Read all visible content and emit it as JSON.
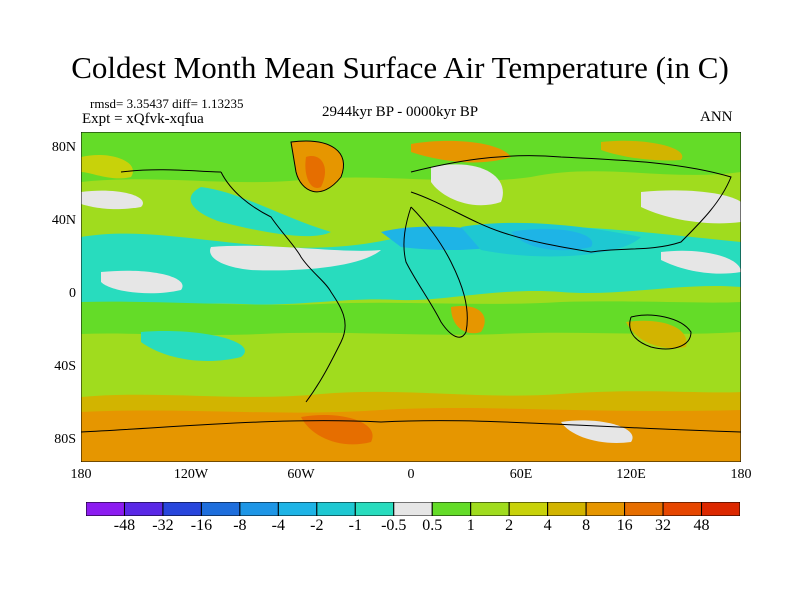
{
  "title": "Coldest Month Mean Surface Air Temperature (in C)",
  "stats": "rmsd= 3.35437 diff= 1.13235",
  "experiment": "Expt = xQfvk-xqfua",
  "period": "2944kyr BP - 0000kyr BP",
  "season": "ANN",
  "lat_ticks": [
    "80N",
    "40N",
    "0",
    "40S",
    "80S"
  ],
  "lon_ticks": [
    "180",
    "120W",
    "60W",
    "0",
    "60E",
    "120E",
    "180"
  ],
  "colorbar": {
    "labels": [
      "-48",
      "-32",
      "-16",
      "-8",
      "-4",
      "-2",
      "-1",
      "-0.5",
      "0.5",
      "1",
      "2",
      "4",
      "8",
      "16",
      "32",
      "48"
    ],
    "colors": [
      "#8c1cf0",
      "#5a28e6",
      "#2846dc",
      "#1e6edc",
      "#1e96e6",
      "#1eb4e6",
      "#1ec8d2",
      "#28dcbe",
      "#e6e6e6",
      "#64dc28",
      "#a0dc1e",
      "#c8d20a",
      "#d2b400",
      "#e69600",
      "#e66e00",
      "#e64600",
      "#dc2800"
    ]
  }
}
